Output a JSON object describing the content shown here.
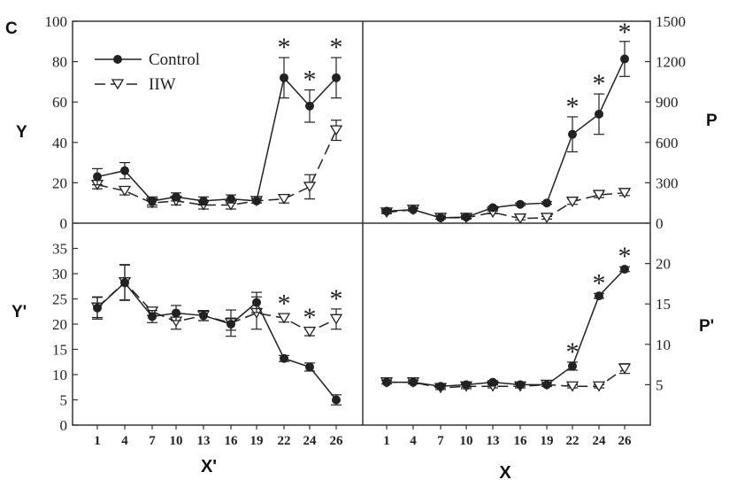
{
  "panel_letter": "C",
  "axis_labels": {
    "top_left_y": "Y",
    "top_right_y": "P",
    "bottom_left_y": "Y'",
    "bottom_right_y": "P'",
    "bottom_left_x": "X'",
    "bottom_right_x": "X"
  },
  "legend": {
    "control": "Control",
    "iiw": "IIW"
  },
  "colors": {
    "line": "#222222",
    "frame": "#333333",
    "marker_open": "#ffffff"
  },
  "significance_marker": "*",
  "chart_data": [
    {
      "type": "line",
      "panel": "top-left",
      "x": [
        1,
        4,
        7,
        10,
        13,
        16,
        19,
        22,
        24,
        26
      ],
      "ylabel": "Y",
      "ylim": [
        0,
        100
      ],
      "yticks": [
        0,
        20,
        40,
        60,
        80,
        100
      ],
      "legend_placement": "top-left",
      "series": [
        {
          "name": "Control",
          "values": [
            23,
            26,
            11,
            13,
            11,
            12,
            11,
            72,
            58,
            72
          ],
          "errors": [
            4,
            4,
            2,
            2,
            2,
            2,
            1,
            10,
            8,
            10
          ]
        },
        {
          "name": "IIW",
          "values": [
            19,
            16,
            10,
            11,
            9,
            9,
            11,
            12,
            18,
            46
          ],
          "errors": [
            2,
            2,
            2,
            2,
            2,
            2,
            1,
            2,
            6,
            5
          ]
        }
      ],
      "significant": [
        22,
        24,
        26
      ]
    },
    {
      "type": "line",
      "panel": "top-right",
      "x": [
        1,
        4,
        7,
        10,
        13,
        16,
        19,
        22,
        24,
        26
      ],
      "ylabel": "P",
      "ylim": [
        0,
        1500
      ],
      "yticks": [
        0,
        300,
        600,
        900,
        1200,
        1500
      ],
      "series": [
        {
          "name": "Control",
          "values": [
            90,
            100,
            40,
            45,
            115,
            140,
            150,
            660,
            810,
            1220
          ],
          "errors": [
            10,
            10,
            10,
            10,
            10,
            10,
            10,
            130,
            150,
            130
          ]
        },
        {
          "name": "IIW",
          "values": [
            80,
            100,
            40,
            40,
            80,
            35,
            40,
            160,
            210,
            225
          ],
          "errors": [
            10,
            10,
            10,
            10,
            10,
            10,
            10,
            20,
            20,
            20
          ]
        }
      ],
      "significant": [
        22,
        24,
        26
      ]
    },
    {
      "type": "line",
      "panel": "bottom-left",
      "x": [
        1,
        4,
        7,
        10,
        13,
        16,
        19,
        22,
        24,
        26
      ],
      "xlabel": "X'",
      "ylabel": "Y'",
      "ylim": [
        0,
        40
      ],
      "yticks": [
        0,
        5,
        10,
        15,
        20,
        25,
        30,
        35
      ],
      "series": [
        {
          "name": "Control",
          "values": [
            23.2,
            28.2,
            21.5,
            22.2,
            21.7,
            20,
            24.3,
            13.2,
            11.5,
            5
          ],
          "errors": [
            2.2,
            3.5,
            1.2,
            1.5,
            1,
            1.2,
            2,
            0.6,
            0.8,
            1
          ]
        },
        {
          "name": "IIW",
          "values": [
            23.3,
            28.3,
            22.5,
            20.5,
            21.7,
            20.2,
            22.2,
            21.2,
            18.5,
            21
          ],
          "errors": [
            2,
            3.5,
            0.8,
            1.5,
            1,
            2.6,
            3.2,
            0.8,
            0.8,
            2
          ]
        }
      ],
      "significant": [
        22,
        24,
        26
      ]
    },
    {
      "type": "line",
      "panel": "bottom-right",
      "x": [
        1,
        4,
        7,
        10,
        13,
        16,
        19,
        22,
        24,
        26
      ],
      "xlabel": "X",
      "ylabel": "P'",
      "ylim": [
        0,
        25
      ],
      "yticks": [
        5,
        10,
        15,
        20
      ],
      "series": [
        {
          "name": "Control",
          "values": [
            5.3,
            5.3,
            4.8,
            5,
            5.3,
            5,
            5,
            7.3,
            16,
            19.3
          ],
          "errors": [
            0.2,
            0.2,
            0.2,
            0.3,
            0.2,
            0.2,
            0.2,
            0.5,
            0.3,
            0.3
          ]
        },
        {
          "name": "IIW",
          "values": [
            5.3,
            5.3,
            4.6,
            4.8,
            4.8,
            4.8,
            5,
            4.8,
            4.8,
            7
          ],
          "errors": [
            0.2,
            0.2,
            0.2,
            0.3,
            0.2,
            0.2,
            0.2,
            0.2,
            0.2,
            0.6
          ]
        }
      ],
      "significant": [
        22,
        24,
        26
      ]
    }
  ]
}
